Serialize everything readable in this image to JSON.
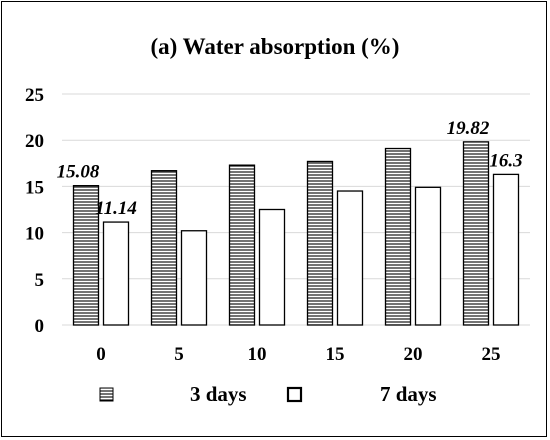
{
  "chart_data": {
    "type": "bar",
    "title": "(a) Water absorption (%)",
    "xlabel": "",
    "ylabel": "",
    "categories": [
      "0",
      "5",
      "10",
      "15",
      "20",
      "25"
    ],
    "ylim": [
      0,
      25
    ],
    "yticks": [
      "0",
      "5",
      "10",
      "15",
      "20",
      "25"
    ],
    "grid": true,
    "legend_position": "bottom",
    "series": [
      {
        "name": "3 days",
        "values": [
          15.08,
          16.7,
          17.3,
          17.7,
          19.1,
          19.82
        ],
        "fill": "horizontal-hatch",
        "color": "#000000"
      },
      {
        "name": "7 days",
        "values": [
          11.14,
          10.2,
          12.5,
          14.5,
          14.9,
          16.3
        ],
        "fill": "white",
        "color": "#000000"
      }
    ],
    "data_labels": [
      {
        "series": 0,
        "index": 0,
        "text": "15.08"
      },
      {
        "series": 1,
        "index": 0,
        "text": "11.14"
      },
      {
        "series": 0,
        "index": 5,
        "text": "19.82"
      },
      {
        "series": 1,
        "index": 5,
        "text": "16.3"
      }
    ]
  }
}
